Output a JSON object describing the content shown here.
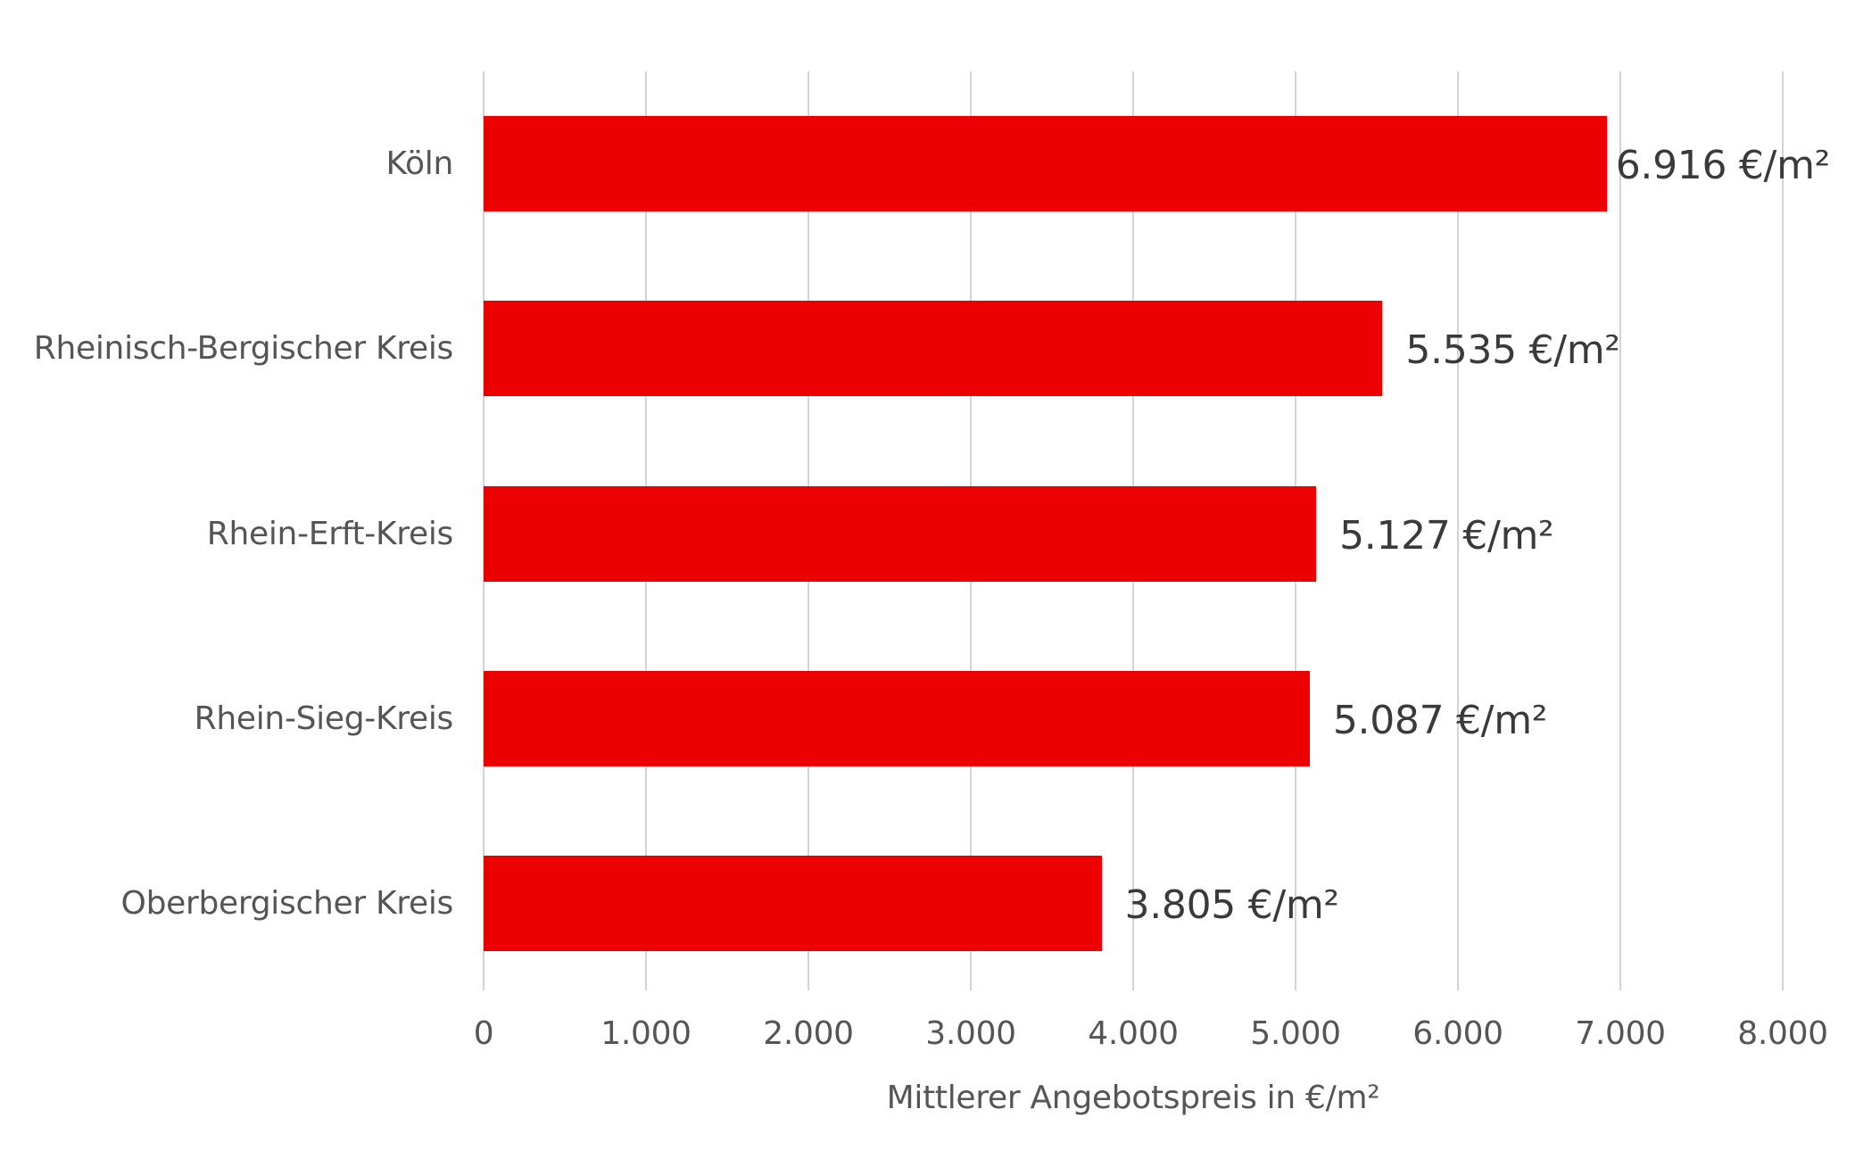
{
  "chart_data": {
    "type": "bar",
    "orientation": "horizontal",
    "title": "",
    "xlabel": "Mittlerer Angebotspreis in €/m²",
    "ylabel": "",
    "categories": [
      "Köln",
      "Rheinisch-Bergischer Kreis",
      "Rhein-Erft-Kreis",
      "Rhein-Sieg-Kreis",
      "Oberbergischer Kreis"
    ],
    "values": [
      6916,
      5535,
      5127,
      5087,
      3805
    ],
    "value_labels": [
      "6.916 €/m²",
      "5.535 €/m²",
      "5.127 €/m²",
      "5.087 €/m²",
      "3.805 €/m²"
    ],
    "xlim": [
      0,
      8000
    ],
    "x_ticks": [
      0,
      1000,
      2000,
      3000,
      4000,
      5000,
      6000,
      7000,
      8000
    ],
    "x_tick_labels": [
      "0",
      "1.000",
      "2.000",
      "3.000",
      "4.000",
      "5.000",
      "6.000",
      "7.000",
      "8.000"
    ],
    "grid": "vertical",
    "legend": "none",
    "bar_color": "#ec0000"
  },
  "labels": {
    "axis_title": "Mittlerer Angebotspreis in €/m²"
  }
}
